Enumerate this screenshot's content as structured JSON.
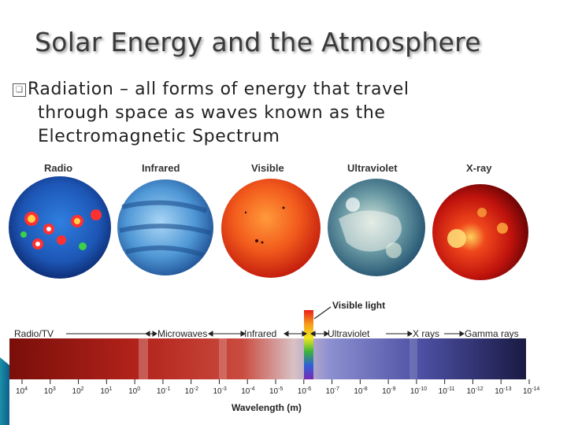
{
  "slide": {
    "title": "Solar Energy and the Atmosphere",
    "bullet": {
      "icon": "square-bullet-icon",
      "lines": [
        "Radiation – all forms of energy that travel",
        "through space as waves known as the",
        "Electromagnetic Spectrum"
      ]
    }
  },
  "figure": {
    "sun_images": [
      {
        "label": "Radio",
        "color": "#1b5fb8"
      },
      {
        "label": "Infrared",
        "color": "#5aa0dc"
      },
      {
        "label": "Visible",
        "color": "#e8361a"
      },
      {
        "label": "Ultraviolet",
        "color": "#2e6e8a"
      },
      {
        "label": "X-ray",
        "color": "#c21510"
      }
    ],
    "spectrum": {
      "visible_light_label": "Visible light",
      "bands": [
        "Radio/TV",
        "Microwaves",
        "Infrared",
        "Ultraviolet",
        "X rays",
        "Gamma rays"
      ],
      "wavelength_ticks": [
        {
          "base": "10",
          "exp": "4"
        },
        {
          "base": "10",
          "exp": "3"
        },
        {
          "base": "10",
          "exp": "2"
        },
        {
          "base": "10",
          "exp": "1"
        },
        {
          "base": "10",
          "exp": "0"
        },
        {
          "base": "10",
          "exp": "-1"
        },
        {
          "base": "10",
          "exp": "-2"
        },
        {
          "base": "10",
          "exp": "-3"
        },
        {
          "base": "10",
          "exp": "-4"
        },
        {
          "base": "10",
          "exp": "-5"
        },
        {
          "base": "10",
          "exp": "-6"
        },
        {
          "base": "10",
          "exp": "-7"
        },
        {
          "base": "10",
          "exp": "-8"
        },
        {
          "base": "10",
          "exp": "-9"
        },
        {
          "base": "10",
          "exp": "-10"
        },
        {
          "base": "10",
          "exp": "-11"
        },
        {
          "base": "10",
          "exp": "-12"
        },
        {
          "base": "10",
          "exp": "-13"
        },
        {
          "base": "10",
          "exp": "-14"
        }
      ],
      "axis_label": "Wavelength (m)"
    }
  }
}
